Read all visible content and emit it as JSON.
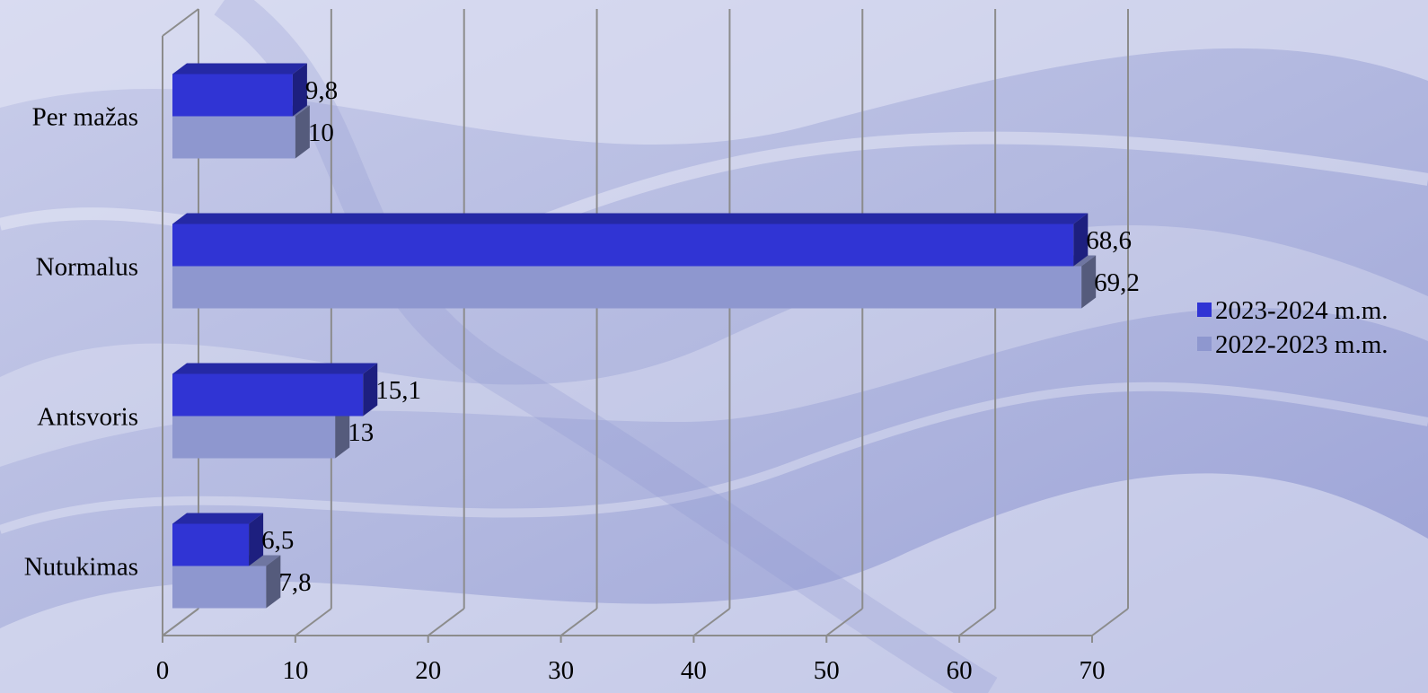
{
  "chart_data": {
    "type": "bar",
    "orientation": "horizontal",
    "three_d": true,
    "categories": [
      "Per mažas",
      "Normalus",
      "Antsvoris",
      "Nutukimas"
    ],
    "series": [
      {
        "name": "2023-2024 m.m.",
        "color": "#3034D4",
        "values": [
          9.8,
          68.6,
          15.1,
          6.5
        ],
        "labels": [
          "9,8",
          "68,6",
          "15,1",
          "6,5"
        ]
      },
      {
        "name": "2022-2023 m.m.",
        "color": "#8E97CF",
        "values": [
          10,
          69.2,
          13,
          7.8
        ],
        "labels": [
          "10",
          "69,2",
          "13",
          "7,8"
        ]
      }
    ],
    "xlim": [
      0,
      70
    ],
    "x_ticks": [
      "0",
      "10",
      "20",
      "30",
      "40",
      "50",
      "60",
      "70"
    ],
    "gridlines": true,
    "legend_position": "right"
  }
}
